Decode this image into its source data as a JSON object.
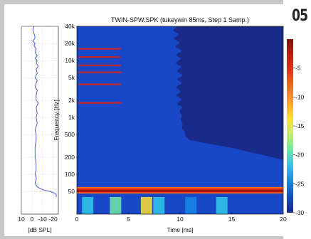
{
  "figure_number": "05",
  "chart_data": [
    {
      "type": "line",
      "role": "frequency-response-side-panel",
      "xlabel": "[dB SPL]",
      "x_ticks": [
        10,
        0,
        -10,
        -20
      ],
      "x_tick_labels": [
        "10",
        "0",
        "-10",
        "-20"
      ],
      "xlim": [
        10,
        -25
      ],
      "ylim_hz": [
        20,
        40000
      ],
      "y_scale": "log",
      "grid": true,
      "line_color": "#3a4fd8",
      "series": [
        {
          "points_hz_db": [
            [
              40000,
              -2
            ],
            [
              35000,
              -1
            ],
            [
              30000,
              -2
            ],
            [
              25000,
              -3
            ],
            [
              22000,
              -1
            ],
            [
              20000,
              -3
            ],
            [
              18000,
              -2
            ],
            [
              16000,
              -4
            ],
            [
              14000,
              -3
            ],
            [
              12000,
              -5
            ],
            [
              11000,
              -3
            ],
            [
              10000,
              -5
            ],
            [
              9000,
              -4
            ],
            [
              8000,
              -6
            ],
            [
              7000,
              -4
            ],
            [
              6000,
              -5
            ],
            [
              5000,
              -3
            ],
            [
              4500,
              -5
            ],
            [
              4000,
              -4
            ],
            [
              3500,
              -3
            ],
            [
              3000,
              -5
            ],
            [
              2500,
              -4
            ],
            [
              2000,
              -4
            ],
            [
              1800,
              -6
            ],
            [
              1500,
              -4
            ],
            [
              1200,
              -5
            ],
            [
              1000,
              -4
            ],
            [
              800,
              -5
            ],
            [
              600,
              -3
            ],
            [
              500,
              -4
            ],
            [
              400,
              -4
            ],
            [
              300,
              -3
            ],
            [
              250,
              -3
            ],
            [
              200,
              -3
            ],
            [
              150,
              -4
            ],
            [
              120,
              -4
            ],
            [
              100,
              -3
            ],
            [
              90,
              -4
            ],
            [
              80,
              -4
            ],
            [
              70,
              -3
            ],
            [
              60,
              -5
            ],
            [
              55,
              -9
            ],
            [
              52,
              -13
            ],
            [
              50,
              -17
            ],
            [
              47,
              -21
            ],
            [
              44,
              -23
            ],
            [
              40,
              -23
            ]
          ]
        }
      ]
    },
    {
      "type": "heatmap",
      "role": "cumulative-spectral-decay",
      "title": "TWIN-SPW.SPK (tukeywin 85ms, Step 1 Samp.)",
      "xlabel": "Time [ms]",
      "ylabel": "Frequency [Hz]",
      "xlim": [
        0,
        20
      ],
      "x_ticks": [
        0,
        5,
        10,
        15,
        20
      ],
      "x_tick_labels": [
        "0",
        "5",
        "10",
        "15",
        "20"
      ],
      "y_scale": "log",
      "ylim_hz": [
        20,
        40000
      ],
      "y_ticks": [
        40000,
        20000,
        10000,
        5000,
        2000,
        1000,
        500,
        200,
        100,
        50
      ],
      "y_tick_labels": [
        "40k",
        "20k",
        "10k",
        "5k",
        "2k",
        "1k",
        "500",
        "200",
        "100",
        "50"
      ],
      "decay_front_ms_by_hz": [
        [
          40000,
          4.5
        ],
        [
          30000,
          4.6
        ],
        [
          20000,
          4.7
        ],
        [
          15000,
          4.9
        ],
        [
          10000,
          4.8
        ],
        [
          7000,
          4.9
        ],
        [
          5000,
          5.0
        ],
        [
          3000,
          4.8
        ],
        [
          2000,
          4.9
        ],
        [
          1500,
          5.0
        ],
        [
          1000,
          5.1
        ],
        [
          700,
          5.2
        ],
        [
          500,
          5.5
        ],
        [
          350,
          6.0
        ],
        [
          250,
          6.6
        ],
        [
          200,
          7.2
        ],
        [
          150,
          8.5
        ],
        [
          120,
          10.0
        ],
        [
          100,
          12.0
        ],
        [
          80,
          15.5
        ],
        [
          65,
          20
        ]
      ],
      "colorbar": {
        "unit_label": "",
        "ticks": [
          -5,
          -10,
          -15,
          -20,
          -25,
          -30
        ],
        "tick_labels": [
          "-5",
          "-10",
          "-15",
          "-20",
          "-25",
          "-30"
        ],
        "range_db": [
          0,
          -30
        ],
        "colors": [
          "#8a0e0e",
          "#c21a10",
          "#e4321c",
          "#f26b1e",
          "#f9a322",
          "#ffe02c",
          "#c8f060",
          "#70e8a8",
          "#30c8e8",
          "#1888e8",
          "#1848c8",
          "#1a2a8a"
        ]
      }
    }
  ]
}
